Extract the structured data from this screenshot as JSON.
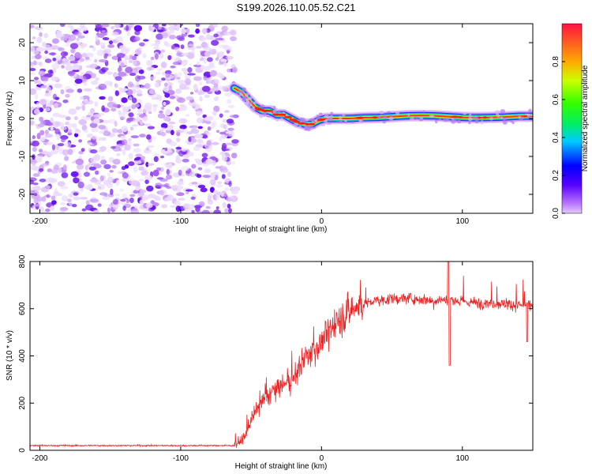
{
  "title": "S199.2026.110.05.52.C21",
  "chart_data": [
    {
      "type": "heatmap",
      "name": "spectrogram",
      "title": "S199.2026.110.05.52.C21",
      "xlabel": "Height of straight line (km)",
      "ylabel": "Frequency (Hz)",
      "xlim": [
        -207,
        150
      ],
      "ylim": [
        -25,
        25
      ],
      "xticks": [
        -200,
        -100,
        0,
        100
      ],
      "yticks": [
        -20,
        -10,
        0,
        10,
        20
      ],
      "noise_region_x": [
        -207,
        -62
      ],
      "signal_track": {
        "x": [
          -62,
          -57,
          -52,
          -47,
          -42,
          -37,
          -32,
          -27,
          -22,
          -17,
          -12,
          -7,
          -2,
          3,
          10,
          20,
          30,
          40,
          50,
          60,
          70,
          80,
          90,
          100,
          110,
          120,
          130,
          140,
          150
        ],
        "y": [
          8,
          7,
          5,
          3,
          2,
          2,
          1,
          1,
          0,
          -1,
          -1.5,
          -1.5,
          -0.5,
          0,
          0,
          0,
          0.2,
          0.3,
          0.5,
          0.7,
          0.8,
          0.7,
          0.5,
          0.3,
          0.2,
          0.3,
          0.4,
          0.6,
          0.6
        ]
      },
      "colorbar": {
        "label": "Normalized spectral amplitude",
        "ticks": [
          0.0,
          0.2,
          0.4,
          0.6,
          0.8
        ],
        "range": [
          0,
          1
        ]
      }
    },
    {
      "type": "line",
      "name": "snr",
      "xlabel": "Height of straight line (km)",
      "ylabel": "SNR (10 * v/v)",
      "xlim": [
        -207,
        150
      ],
      "ylim": [
        0,
        800
      ],
      "xticks": [
        -200,
        -100,
        0,
        100
      ],
      "yticks": [
        0,
        200,
        400,
        600,
        800
      ],
      "color": "#ee2222",
      "series": [
        {
          "name": "SNR",
          "x": [
            -207,
            -180,
            -150,
            -120,
            -90,
            -62,
            -55,
            -50,
            -45,
            -40,
            -35,
            -30,
            -25,
            -20,
            -15,
            -10,
            -5,
            0,
            10,
            20,
            30,
            40,
            50,
            60,
            70,
            80,
            90,
            100,
            110,
            120,
            130,
            140,
            150
          ],
          "values": [
            20,
            20,
            20,
            20,
            20,
            20,
            50,
            130,
            180,
            220,
            250,
            270,
            280,
            300,
            360,
            400,
            430,
            460,
            540,
            590,
            620,
            635,
            640,
            645,
            640,
            635,
            640,
            630,
            625,
            625,
            620,
            615,
            615
          ]
        }
      ]
    }
  ]
}
